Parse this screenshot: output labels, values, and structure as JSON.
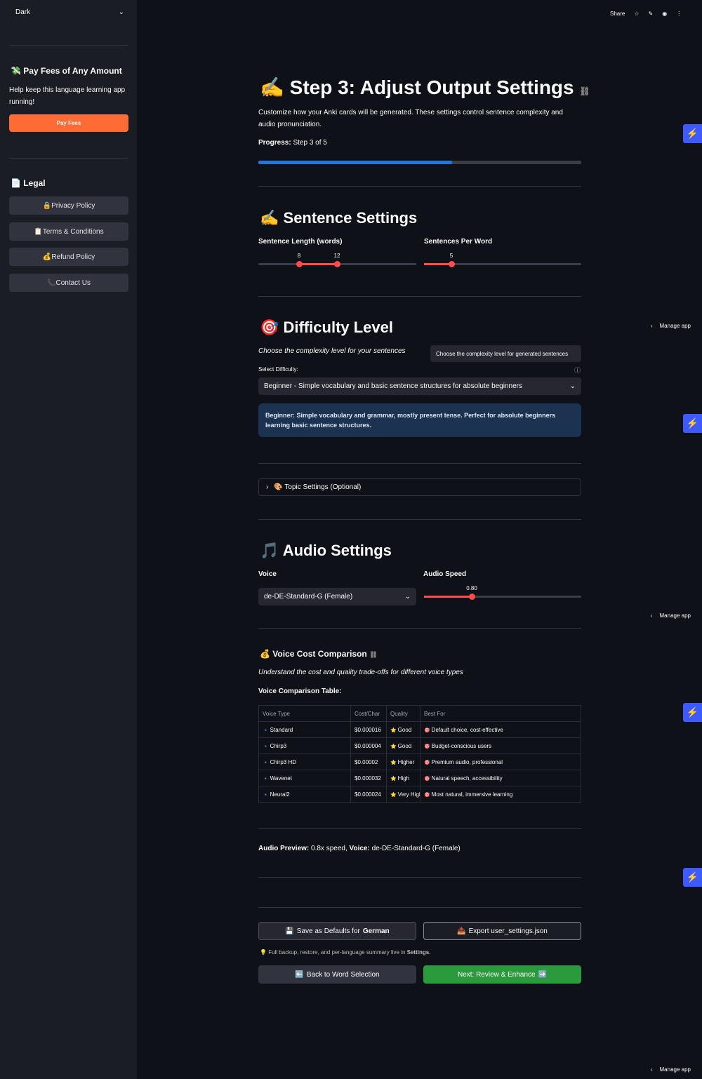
{
  "sidebar": {
    "theme_select": "Dark",
    "fees": {
      "title": "Pay Fees of Any Amount",
      "text": "Help keep this language learning app running!",
      "button": "Pay Fees"
    },
    "legal": {
      "title": "Legal",
      "links": [
        "Privacy Policy",
        "Terms & Conditions",
        "Refund Policy",
        "Contact Us"
      ]
    }
  },
  "toolbar": {
    "share": "Share"
  },
  "manage_app": [
    "Manage app",
    "Manage app",
    "Manage app"
  ],
  "header": {
    "title": "Step 3: Adjust Output Settings",
    "description": "Customize how your Anki cards will be generated. These settings control sentence complexity and audio pronunciation.",
    "progress_label": "Progress:",
    "progress_value": "Step 3 of 5"
  },
  "sentence_settings": {
    "title": "Sentence Settings",
    "length": {
      "label": "Sentence Length (words)",
      "min": "8",
      "max": "12"
    },
    "per_word": {
      "label": "Sentences Per Word",
      "value": "5"
    }
  },
  "difficulty": {
    "title": "Difficulty Level",
    "caption": "Choose the complexity level for your sentences",
    "tooltip": "Choose the complexity level for generated sentences",
    "select_label": "Select Difficulty:",
    "selected": "Beginner - Simple vocabulary and basic sentence structures for absolute beginners",
    "info": "Beginner: Simple vocabulary and grammar, mostly present tense. Perfect for absolute beginners learning basic sentence structures."
  },
  "topic": {
    "expander": "Topic Settings (Optional)"
  },
  "audio": {
    "title": "Audio Settings",
    "voice_label": "Voice",
    "voice": "de-DE-Standard-G (Female)",
    "speed_label": "Audio Speed",
    "speed": "0.80"
  },
  "cost": {
    "title": "Voice Cost Comparison",
    "caption": "Understand the cost and quality trade-offs for different voice types",
    "table_title": "Voice Comparison Table:",
    "table": {
      "columns": [
        "Voice Type",
        "Cost/Char",
        "Quality",
        "Best For"
      ],
      "rows": [
        [
          "Standard",
          "$0.000016",
          "Good",
          "Default choice, cost-effective"
        ],
        [
          "Chirp3",
          "$0.000004",
          "Good",
          "Budget-conscious users"
        ],
        [
          "Chirp3 HD",
          "$0.00002",
          "Higher",
          "Premium audio, professional"
        ],
        [
          "Wavenet",
          "$0.000032",
          "High",
          "Natural speech, accessibility"
        ],
        [
          "Neural2",
          "$0.000024",
          "Very High",
          "Most natural, immersive learning"
        ]
      ]
    }
  },
  "preview": {
    "label": "Audio Preview:",
    "speed": "0.8x speed,",
    "voice_label": "Voice:",
    "voice": "de-DE-Standard-G (Female)"
  },
  "actions": {
    "save_prefix": "Save as Defaults for",
    "save_language": "German",
    "export": "Export user_settings.json",
    "note_text": "Full backup, restore, and per-language summary live in",
    "note_link": "Settings.",
    "back": "Back to Word Selection",
    "next": "Next: Review & Enhance"
  }
}
